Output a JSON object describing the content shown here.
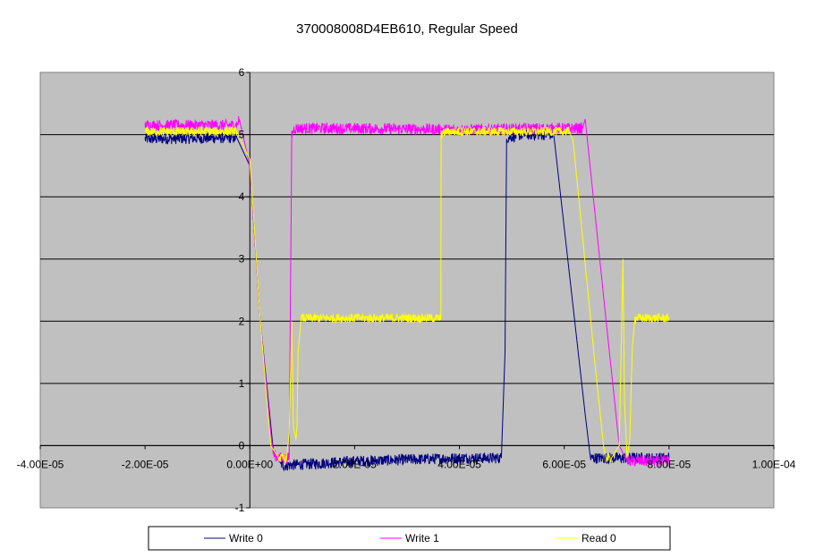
{
  "chart_data": {
    "type": "line",
    "title": "370008008D4EB610, Regular Speed",
    "xlabel": "",
    "ylabel": "",
    "xlim": [
      -4e-05,
      0.0001
    ],
    "ylim": [
      -1,
      6
    ],
    "x_ticks": [
      -4e-05,
      -2e-05,
      0,
      2e-05,
      4e-05,
      6e-05,
      8e-05,
      0.0001
    ],
    "x_tick_labels": [
      "-4.00E-05",
      "-2.00E-05",
      "0.00E+00",
      "2.00E-05",
      "4.00E-05",
      "6.00E-05",
      "8.00E-05",
      "1.00E-04"
    ],
    "y_ticks": [
      -1,
      0,
      1,
      2,
      3,
      4,
      5,
      6
    ],
    "y_tick_labels": [
      "-1",
      "0",
      "1",
      "2",
      "3",
      "4",
      "5",
      "6"
    ],
    "grid": "horizontal",
    "plot_background": "#c0c0c0",
    "legend_position": "bottom",
    "series": [
      {
        "name": "Write 0",
        "color": "#000080",
        "noise": 0.05,
        "points": [
          [
            -2e-05,
            4.93
          ],
          [
            -2.5e-06,
            4.95
          ],
          [
            0,
            4.5
          ],
          [
            2e-06,
            2.0
          ],
          [
            4.5e-06,
            -0.1
          ],
          [
            6e-06,
            -0.3
          ],
          [
            6.5e-06,
            -0.32
          ],
          [
            2e-05,
            -0.25
          ],
          [
            4e-05,
            -0.2
          ],
          [
            4.8e-05,
            -0.2
          ],
          [
            4.87e-05,
            1.5
          ],
          [
            4.9e-05,
            4.95
          ],
          [
            5.2e-05,
            5.0
          ],
          [
            5.8e-05,
            5.0
          ],
          [
            6.2e-05,
            2.0
          ],
          [
            6.4e-05,
            0.5
          ],
          [
            6.5e-05,
            -0.2
          ],
          [
            7e-05,
            -0.2
          ],
          [
            8e-05,
            -0.2
          ]
        ]
      },
      {
        "name": "Write 1",
        "color": "#ff00ff",
        "noise": 0.05,
        "points": [
          [
            -2e-05,
            5.15
          ],
          [
            -2.5e-06,
            5.15
          ],
          [
            -2e-06,
            5.25
          ],
          [
            0,
            4.5
          ],
          [
            2e-06,
            2.0
          ],
          [
            4e-06,
            0.2
          ],
          [
            4.5e-06,
            -0.15
          ],
          [
            6e-06,
            -0.2
          ],
          [
            7.5e-06,
            -0.2
          ],
          [
            8e-06,
            5.0
          ],
          [
            8.5e-06,
            5.1
          ],
          [
            2e-05,
            5.1
          ],
          [
            4e-05,
            5.08
          ],
          [
            5.8e-05,
            5.1
          ],
          [
            6.35e-05,
            5.1
          ],
          [
            6.4e-05,
            5.25
          ],
          [
            6.8e-05,
            2.0
          ],
          [
            7.05e-05,
            0.0
          ],
          [
            7.2e-05,
            -0.25
          ],
          [
            8e-05,
            -0.25
          ]
        ]
      },
      {
        "name": "Read 0",
        "color": "#ffff00",
        "noise": 0.04,
        "points": [
          [
            -2e-05,
            5.05
          ],
          [
            -2.5e-06,
            5.05
          ],
          [
            0,
            4.6
          ],
          [
            2e-06,
            2.0
          ],
          [
            4e-06,
            0.0
          ],
          [
            5.5e-06,
            -0.2
          ],
          [
            7e-06,
            -0.2
          ],
          [
            7.5e-06,
            0.2
          ],
          [
            8e-06,
            2.0
          ],
          [
            8.3e-06,
            0.3
          ],
          [
            8.8e-06,
            0.1
          ],
          [
            9e-06,
            0.3
          ],
          [
            9.2e-06,
            1.5
          ],
          [
            9.8e-06,
            2.05
          ],
          [
            1.5e-05,
            2.05
          ],
          [
            3e-05,
            2.05
          ],
          [
            3.645e-05,
            2.05
          ],
          [
            3.65e-05,
            5.0
          ],
          [
            3.75e-05,
            5.05
          ],
          [
            4.5e-05,
            5.05
          ],
          [
            6.1e-05,
            5.05
          ],
          [
            6.17e-05,
            4.9
          ],
          [
            6.6e-05,
            1.2
          ],
          [
            6.75e-05,
            0.0
          ],
          [
            6.8e-05,
            -0.2
          ],
          [
            6.9e-05,
            -0.2
          ],
          [
            7.05e-05,
            0.0
          ],
          [
            7.12e-05,
            3.0
          ],
          [
            7.15e-05,
            0.7
          ],
          [
            7.2e-05,
            -0.2
          ],
          [
            7.25e-05,
            0.1
          ],
          [
            7.3e-05,
            1.6
          ],
          [
            7.35e-05,
            2.05
          ],
          [
            8e-05,
            2.05
          ]
        ]
      }
    ]
  }
}
